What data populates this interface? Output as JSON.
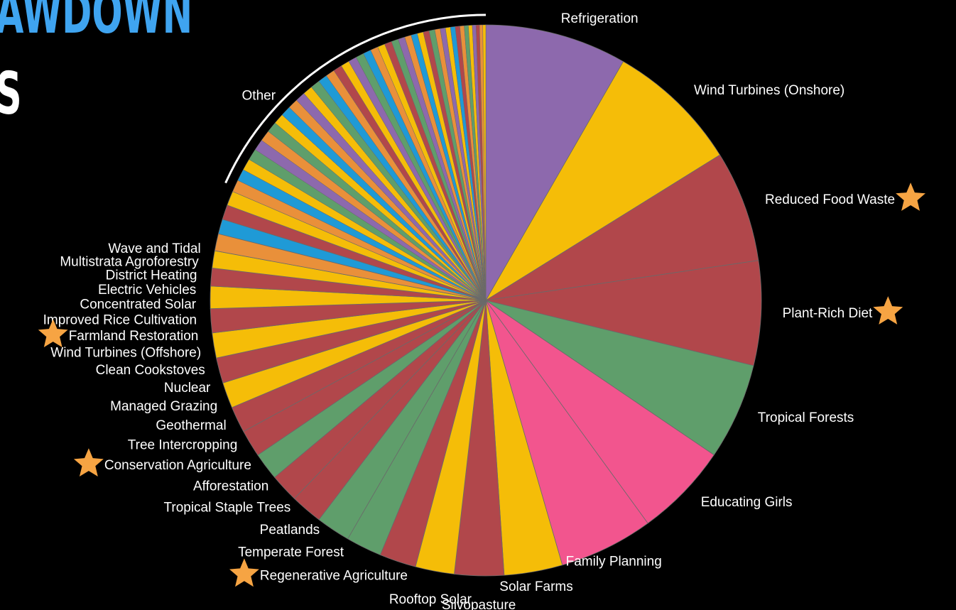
{
  "title": {
    "line1": "AWDOWN",
    "line2": "S"
  },
  "footer": "",
  "colors": {
    "background": "#000000",
    "label": "#ffffff",
    "title_accent": "#3fa4f0",
    "star": "#f6a443",
    "separator": "#6a6a6a",
    "other_arc": "#ffffff"
  },
  "chart_data": {
    "type": "pie",
    "title": "",
    "start_angle_deg": 0,
    "direction": "clockwise",
    "slices": [
      {
        "label": "Refrigeration",
        "value": 89.7,
        "color": "#8d69ad",
        "starred": false
      },
      {
        "label": "Wind Turbines (Onshore)",
        "value": 84.6,
        "color": "#f5bd08",
        "starred": false
      },
      {
        "label": "Reduced Food Waste",
        "value": 70.5,
        "color": "#b1474b",
        "starred": true
      },
      {
        "label": "Plant-Rich Diet",
        "value": 66.1,
        "color": "#b1474b",
        "starred": true
      },
      {
        "label": "Tropical Forests",
        "value": 61.2,
        "color": "#5f9e6b",
        "starred": false
      },
      {
        "label": "Educating Girls",
        "value": 59.6,
        "color": "#f2558e",
        "starred": false
      },
      {
        "label": "Family Planning",
        "value": 59.6,
        "color": "#f2558e",
        "starred": false
      },
      {
        "label": "Solar Farms",
        "value": 36.9,
        "color": "#f5bd08",
        "starred": false
      },
      {
        "label": "Silvopasture",
        "value": 31.2,
        "color": "#b1474b",
        "starred": false
      },
      {
        "label": "Rooftop Solar",
        "value": 24.6,
        "color": "#f5bd08",
        "starred": false
      },
      {
        "label": "Regenerative Agriculture",
        "value": 23.2,
        "color": "#b1474b",
        "starred": true
      },
      {
        "label": "Temperate Forest",
        "value": 22.6,
        "color": "#5f9e6b",
        "starred": false
      },
      {
        "label": "Peatlands",
        "value": 21.6,
        "color": "#5f9e6b",
        "starred": false
      },
      {
        "label": "Tropical Staple Trees",
        "value": 20.2,
        "color": "#b1474b",
        "starred": false
      },
      {
        "label": "Afforestation",
        "value": 18.1,
        "color": "#b1474b",
        "starred": false
      },
      {
        "label": "Conservation Agriculture",
        "value": 17.4,
        "color": "#5f9e6b",
        "starred": true
      },
      {
        "label": "Tree Intercropping",
        "value": 17.2,
        "color": "#b1474b",
        "starred": false
      },
      {
        "label": "Geothermal",
        "value": 16.6,
        "color": "#b1474b",
        "starred": false
      },
      {
        "label": "Managed Grazing",
        "value": 16.3,
        "color": "#f5bd08",
        "starred": false
      },
      {
        "label": "Nuclear",
        "value": 16.1,
        "color": "#b1474b",
        "starred": false
      },
      {
        "label": "Clean Cookstoves",
        "value": 15.8,
        "color": "#f5bd08",
        "starred": false
      },
      {
        "label": "Wind Turbines (Offshore)",
        "value": 15.2,
        "color": "#b1474b",
        "starred": false
      },
      {
        "label": "Farmland Restoration",
        "value": 14.1,
        "color": "#f5bd08",
        "starred": true
      },
      {
        "label": "Improved Rice Cultivation",
        "value": 11.3,
        "color": "#b1474b",
        "starred": false
      },
      {
        "label": "Concentrated Solar",
        "value": 10.9,
        "color": "#f5bd08",
        "starred": false
      },
      {
        "label": "Electric Vehicles",
        "value": 10.8,
        "color": "#e9903a",
        "starred": false
      },
      {
        "label": "District Heating",
        "value": 9.4,
        "color": "#1f9ad6",
        "starred": false
      },
      {
        "label": "Multistrata Agroforestry",
        "value": 9.3,
        "color": "#b1474b",
        "starred": false
      },
      {
        "label": "Wave and Tidal",
        "value": 9.2,
        "color": "#f5bd08",
        "starred": false
      }
    ],
    "other": {
      "label": "Other",
      "value": 200,
      "colors": [
        "#e9903a",
        "#1f9ad6",
        "#f5bd08",
        "#5f9e6b",
        "#8d69ad",
        "#e9903a",
        "#5f9e6b",
        "#f5bd08",
        "#1f9ad6",
        "#e9903a",
        "#8d69ad",
        "#f5bd08",
        "#5f9e6b",
        "#1f9ad6",
        "#e9903a",
        "#b1474b",
        "#f5bd08",
        "#8d69ad",
        "#5f9e6b",
        "#1f9ad6",
        "#e9903a",
        "#f5bd08",
        "#b1474b",
        "#5f9e6b",
        "#8d69ad",
        "#e9903a",
        "#1f9ad6",
        "#f5bd08",
        "#b1474b",
        "#5f9e6b",
        "#e9903a",
        "#8d69ad",
        "#f5bd08",
        "#1f9ad6",
        "#b1474b",
        "#e9903a",
        "#5f9e6b",
        "#f5bd08",
        "#8d69ad",
        "#b1474b",
        "#e9903a",
        "#f5bd08"
      ]
    }
  }
}
